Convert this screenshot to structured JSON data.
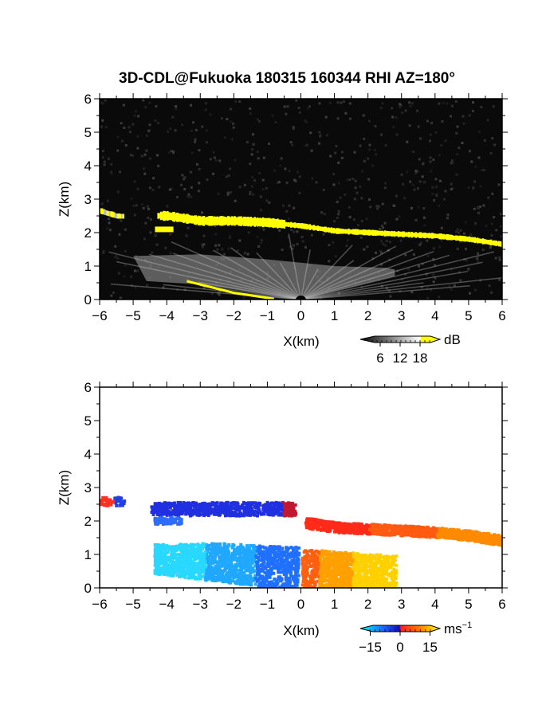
{
  "figure": {
    "title": "3D-CDL@Fukuoka 180315 160344 RHI AZ=180°"
  },
  "chart_data": [
    {
      "type": "heatmap",
      "panel": "reflectivity",
      "xlabel": "X(km)",
      "ylabel": "Z(km)",
      "xlim": [
        -6,
        6
      ],
      "ylim": [
        0,
        6
      ],
      "xticks": [
        "−6",
        "−5",
        "−4",
        "−3",
        "−2",
        "−1",
        "0",
        "1",
        "2",
        "3",
        "4",
        "5",
        "6"
      ],
      "yticks": [
        "0",
        "1",
        "2",
        "3",
        "4",
        "5",
        "6"
      ],
      "background_color": "#0a0a0a",
      "colorbar": {
        "unit": "dB",
        "ticks": [
          "6",
          "12",
          "18"
        ],
        "tick_values": [
          6,
          12,
          18
        ],
        "range": [
          0,
          24
        ],
        "colors": [
          "#000000",
          "#ffffff",
          "#ffff00"
        ]
      },
      "features": {
        "cloud_base_layer_km": [
          [
            -6,
            2.65
          ],
          [
            -5.5,
            2.5
          ],
          [
            -4.5,
            2.5
          ],
          [
            -4,
            2.5
          ],
          [
            -3,
            2.35
          ],
          [
            -2,
            2.35
          ],
          [
            -1,
            2.3
          ],
          [
            0,
            2.2
          ],
          [
            1,
            2.05
          ],
          [
            2,
            2.0
          ],
          [
            3,
            1.95
          ],
          [
            4,
            1.9
          ],
          [
            5,
            1.8
          ],
          [
            6,
            1.65
          ]
        ],
        "secondary_layer_km": [
          [
            -4.35,
            2.1
          ],
          [
            -3.8,
            2.05
          ]
        ],
        "boundary_layer_top_km": [
          [
            -5,
            1.3
          ],
          [
            -3,
            1.35
          ],
          [
            -1,
            1.2
          ],
          [
            1,
            1.0
          ],
          [
            2.5,
            0.95
          ],
          [
            2.8,
            0.9
          ]
        ],
        "radar_origin_km": [
          0,
          0
        ]
      }
    },
    {
      "type": "heatmap",
      "panel": "doppler_velocity",
      "xlabel": "X(km)",
      "ylabel": "Z(km)",
      "xlim": [
        -6,
        6
      ],
      "ylim": [
        0,
        6
      ],
      "xticks": [
        "−6",
        "−5",
        "−4",
        "−3",
        "−2",
        "−1",
        "0",
        "1",
        "2",
        "3",
        "4",
        "5",
        "6"
      ],
      "yticks": [
        "0",
        "1",
        "2",
        "3",
        "4",
        "5",
        "6"
      ],
      "background_color": "#ffffff",
      "colorbar": {
        "unit": "ms",
        "unit_superscript": "−1",
        "ticks": [
          "−15",
          "0",
          "15"
        ],
        "tick_values": [
          -15,
          0,
          15
        ],
        "range": [
          -20,
          20
        ],
        "colors": [
          "#00ffff",
          "#2060ff",
          "#1010b0",
          "#ff2020",
          "#ff8000",
          "#ffff00"
        ]
      },
      "features": {
        "upper_layer_negative_km": {
          "x": [
            -4.5,
            -0.2
          ],
          "z": [
            2.2,
            2.6
          ]
        },
        "upper_layer_positive_km": {
          "x": [
            0.1,
            6.0
          ],
          "z": [
            1.65,
            2.3
          ]
        },
        "lower_negative_km": {
          "x": [
            -4.4,
            -0.1
          ],
          "z": [
            0.05,
            1.4
          ]
        },
        "lower_positive_km": {
          "x": [
            0.0,
            2.8
          ],
          "z": [
            0.05,
            1.15
          ]
        }
      }
    }
  ]
}
